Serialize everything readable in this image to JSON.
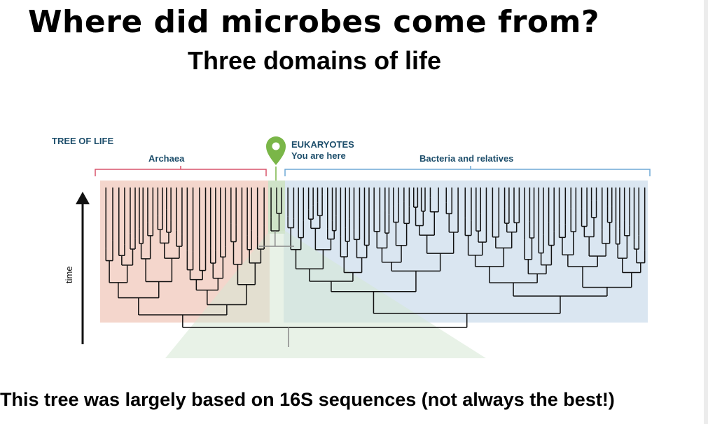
{
  "title": "Where did microbes come from?",
  "subtitle": "Three domains of life",
  "caption": "This tree was largely based on 16S sequences (not always the best!)",
  "figure": {
    "heading": "TREE OF LIFE",
    "archaea_label": "Archaea",
    "eukaryotes_label": "EUKARYOTES",
    "you_are_here": "You are here",
    "bacteria_label": "Bacteria and relatives",
    "time_label": "time",
    "colors": {
      "archaea_bg": "#f4d6cc",
      "bacteria_bg": "#dae6f1",
      "eukarya_bg": "#d6e8d3",
      "archaea_bracket": "#d9536b",
      "bacteria_bracket": "#6fa8d6",
      "pin": "#7ab648",
      "tree": "#111111",
      "gray": "#888888",
      "heading": "#1d4e6b"
    }
  }
}
